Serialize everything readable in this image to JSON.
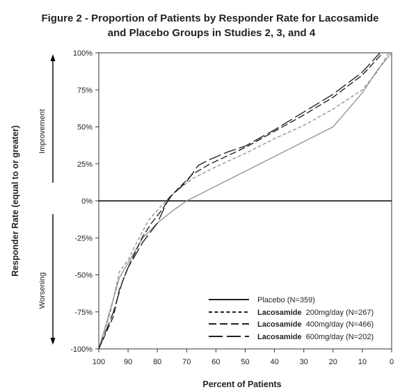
{
  "chart_data": {
    "type": "line",
    "title": "Figure 2 - Proportion of Patients by Responder Rate for Lacosamide",
    "subtitle": "and Placebo Groups in Studies 2, 3, and 4",
    "xlabel": "Percent of Patients",
    "ylabel": "Responder Rate (equal to or greater)",
    "xlim": [
      100,
      0
    ],
    "ylim": [
      -100,
      100
    ],
    "x_ticks": [
      "100",
      "90",
      "80",
      "70",
      "60",
      "50",
      "40",
      "30",
      "20",
      "10",
      "0"
    ],
    "y_ticks": [
      "100%",
      "75%",
      "50%",
      "25%",
      "0%",
      "-25%",
      "-50%",
      "-75%",
      "-100%"
    ],
    "annotations": {
      "improvement": "Improvement",
      "worsening": "Worsening"
    },
    "legend_position": "bottom-right",
    "series": [
      {
        "name": "Placebo (N=359)",
        "label_bold": "",
        "label_rest": "Placebo (N=359)",
        "dash": "solid",
        "points": [
          [
            100,
            -100
          ],
          [
            97,
            -80
          ],
          [
            93,
            -52
          ],
          [
            90,
            -42
          ],
          [
            85,
            -25
          ],
          [
            80,
            -15
          ],
          [
            75,
            -7
          ],
          [
            70,
            0
          ],
          [
            65,
            5
          ],
          [
            60,
            10
          ],
          [
            50,
            20
          ],
          [
            40,
            30
          ],
          [
            30,
            40
          ],
          [
            25,
            45
          ],
          [
            20,
            50
          ],
          [
            10,
            73
          ],
          [
            5,
            88
          ],
          [
            0,
            100
          ]
        ]
      },
      {
        "name": "Lacosamide 200mg/day (N=267)",
        "label_bold": "Lacosamide",
        "label_rest": "200mg/day  (N=267)",
        "dash": "short",
        "points": [
          [
            100,
            -100
          ],
          [
            96,
            -75
          ],
          [
            93,
            -48
          ],
          [
            90,
            -40
          ],
          [
            87,
            -28
          ],
          [
            83,
            -13
          ],
          [
            78,
            -2
          ],
          [
            76,
            2
          ],
          [
            72,
            9
          ],
          [
            68,
            15
          ],
          [
            60,
            23
          ],
          [
            50,
            32
          ],
          [
            40,
            42
          ],
          [
            30,
            51
          ],
          [
            20,
            62
          ],
          [
            10,
            75
          ],
          [
            5,
            87
          ],
          [
            1,
            100
          ]
        ]
      },
      {
        "name": "Lacosamide 400mg/day (N=466)",
        "label_bold": "Lacosamide",
        "label_rest": "400mg/day  (N=466)",
        "dash": "medium",
        "points": [
          [
            100,
            -100
          ],
          [
            95,
            -78
          ],
          [
            93,
            -60
          ],
          [
            90,
            -45
          ],
          [
            85,
            -24
          ],
          [
            82,
            -15
          ],
          [
            78,
            -5
          ],
          [
            76,
            2
          ],
          [
            72,
            10
          ],
          [
            68,
            18
          ],
          [
            62,
            25
          ],
          [
            50,
            36
          ],
          [
            40,
            47
          ],
          [
            30,
            58
          ],
          [
            20,
            70
          ],
          [
            10,
            85
          ],
          [
            3,
            100
          ]
        ]
      },
      {
        "name": "Lacosamide 600mg/day (N=202)",
        "label_bold": "Lacosamide",
        "label_rest": "600mg/day  (N=202)",
        "dash": "long",
        "points": [
          [
            100,
            -100
          ],
          [
            95,
            -75
          ],
          [
            92,
            -55
          ],
          [
            90,
            -45
          ],
          [
            85,
            -28
          ],
          [
            80,
            -15
          ],
          [
            77,
            -2
          ],
          [
            75,
            4
          ],
          [
            70,
            13
          ],
          [
            66,
            24
          ],
          [
            62,
            28
          ],
          [
            56,
            33
          ],
          [
            50,
            37
          ],
          [
            40,
            48
          ],
          [
            30,
            60
          ],
          [
            20,
            72
          ],
          [
            10,
            87
          ],
          [
            4,
            100
          ]
        ]
      }
    ]
  }
}
